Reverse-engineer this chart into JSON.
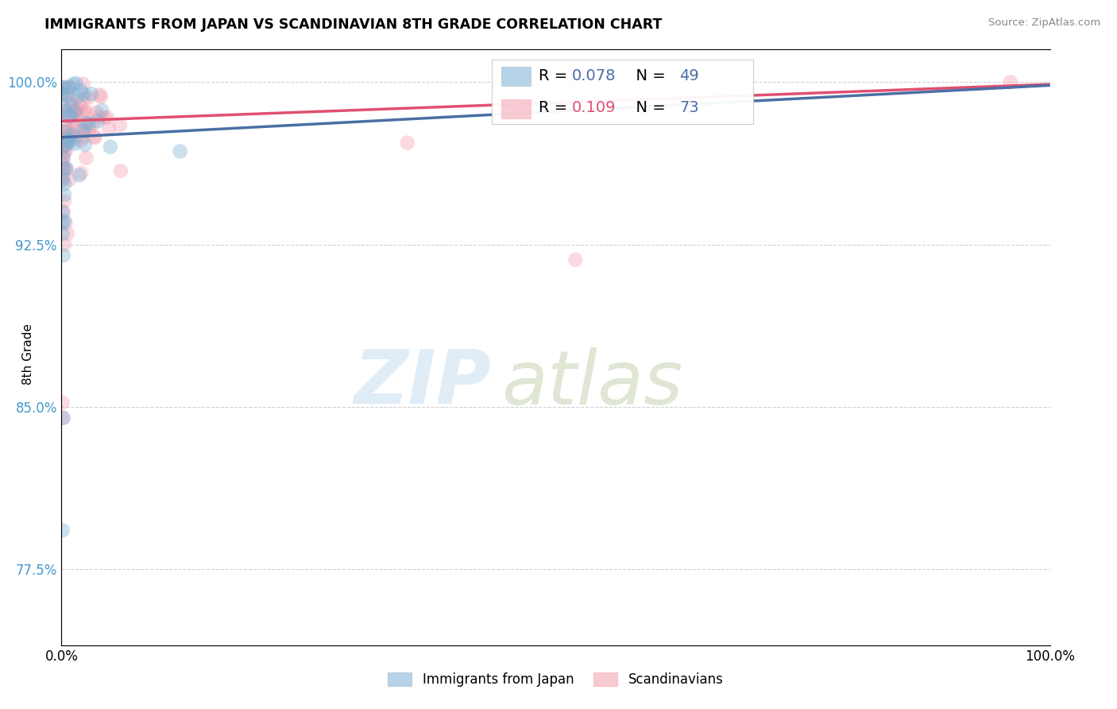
{
  "title": "IMMIGRANTS FROM JAPAN VS SCANDINAVIAN 8TH GRADE CORRELATION CHART",
  "source": "Source: ZipAtlas.com",
  "ylabel": "8th Grade",
  "xlim": [
    0.0,
    1.0
  ],
  "ylim": [
    0.74,
    1.015
  ],
  "yticks": [
    0.775,
    0.85,
    0.925,
    1.0
  ],
  "ytick_labels": [
    "77.5%",
    "85.0%",
    "92.5%",
    "100.0%"
  ],
  "xtick_labels": [
    "0.0%",
    "100.0%"
  ],
  "legend_japan": "Immigrants from Japan",
  "legend_scand": "Scandinavians",
  "R_japan": 0.078,
  "N_japan": 49,
  "R_scand": 0.109,
  "N_scand": 73,
  "japan_color": "#7BAFD4",
  "scand_color": "#F4A0B0",
  "japan_line_color": "#4A6FA5",
  "scand_line_color": "#E05070",
  "japan_R_color": "#4A6FA5",
  "scand_R_color": "#E05070",
  "N_color": "#4A6FA5",
  "watermark_color": "#C8DDF0",
  "watermark_color2": "#B8C8A0",
  "grid_color": "#CCCCCC",
  "background_color": "#FFFFFF",
  "ytick_color": "#4499CC",
  "japan_line_start": 0.9745,
  "japan_line_end": 0.9985,
  "scand_line_start": 0.982,
  "scand_line_end": 0.999
}
